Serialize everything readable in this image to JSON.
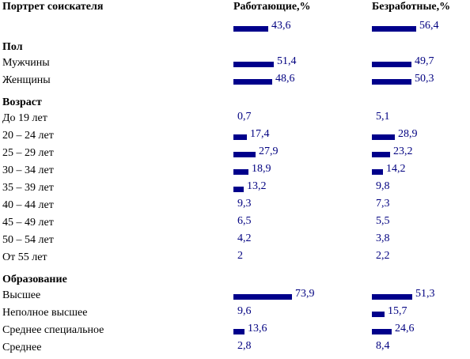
{
  "header": {
    "title": "Портрет соискателя",
    "col_working": "Работающие,%",
    "col_unemployed": "Безработные,%"
  },
  "chart_data": {
    "type": "bar",
    "orientation": "horizontal",
    "series": [
      {
        "name": "Работающие,%"
      },
      {
        "name": "Безработные,%"
      }
    ],
    "rows": [
      {
        "kind": "total",
        "label": "",
        "working": 43.6,
        "unemployed": 56.4
      },
      {
        "kind": "section",
        "label": "Пол"
      },
      {
        "kind": "item",
        "label": "Мужчины",
        "working": 51.4,
        "unemployed": 49.7
      },
      {
        "kind": "item",
        "label": "Женщины",
        "working": 48.6,
        "unemployed": 50.3
      },
      {
        "kind": "section",
        "label": "Возраст"
      },
      {
        "kind": "item",
        "label": "До 19 лет",
        "working": 0.7,
        "unemployed": 5.1
      },
      {
        "kind": "item",
        "label": "20 – 24 лет",
        "working": 17.4,
        "unemployed": 28.9
      },
      {
        "kind": "item",
        "label": "25 – 29 лет",
        "working": 27.9,
        "unemployed": 23.2
      },
      {
        "kind": "item",
        "label": "30 – 34 лет",
        "working": 18.9,
        "unemployed": 14.2
      },
      {
        "kind": "item",
        "label": "35 – 39 лет",
        "working": 13.2,
        "unemployed": 9.8
      },
      {
        "kind": "item",
        "label": "40 – 44 лет",
        "working": 9.3,
        "unemployed": 7.3
      },
      {
        "kind": "item",
        "label": "45 – 49 лет",
        "working": 6.5,
        "unemployed": 5.5
      },
      {
        "kind": "item",
        "label": "50 – 54 лет",
        "working": 4.2,
        "unemployed": 3.8
      },
      {
        "kind": "item",
        "label": "От 55 лет",
        "working": 2,
        "unemployed": 2.2
      },
      {
        "kind": "section",
        "label": "Образование"
      },
      {
        "kind": "item",
        "label": "Высшее",
        "working": 73.9,
        "unemployed": 51.3
      },
      {
        "kind": "item",
        "label": "Неполное высшее",
        "working": 9.6,
        "unemployed": 15.7
      },
      {
        "kind": "item",
        "label": "Среднее специальное",
        "working": 13.6,
        "unemployed": 24.6
      },
      {
        "kind": "item",
        "label": "Среднее",
        "working": 2.8,
        "unemployed": 8.4
      }
    ]
  },
  "colors": {
    "bar": "#00008b",
    "value_text": "#000080"
  }
}
